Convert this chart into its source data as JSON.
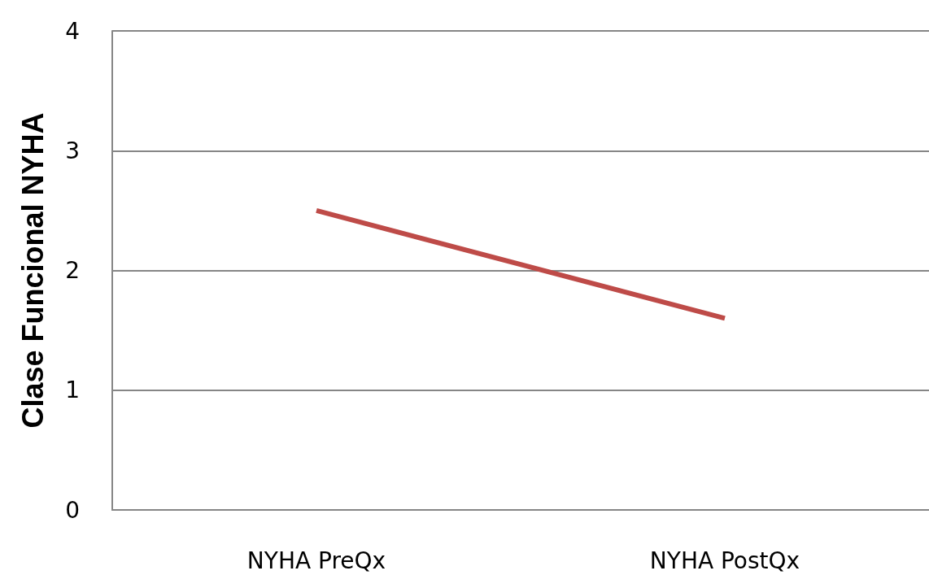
{
  "chart_data": {
    "type": "line",
    "ylabel": "Clase Funcional NYHA",
    "categories": [
      "NYHA PreQx",
      "NYHA PostQx"
    ],
    "series": [
      {
        "color": "#be4b48",
        "values": [
          2.5,
          1.6
        ]
      }
    ],
    "ylim": [
      0,
      4
    ],
    "yticks": [
      0,
      1,
      2,
      3,
      4
    ],
    "grid": "y",
    "marker": "none",
    "line_style": "solid"
  }
}
